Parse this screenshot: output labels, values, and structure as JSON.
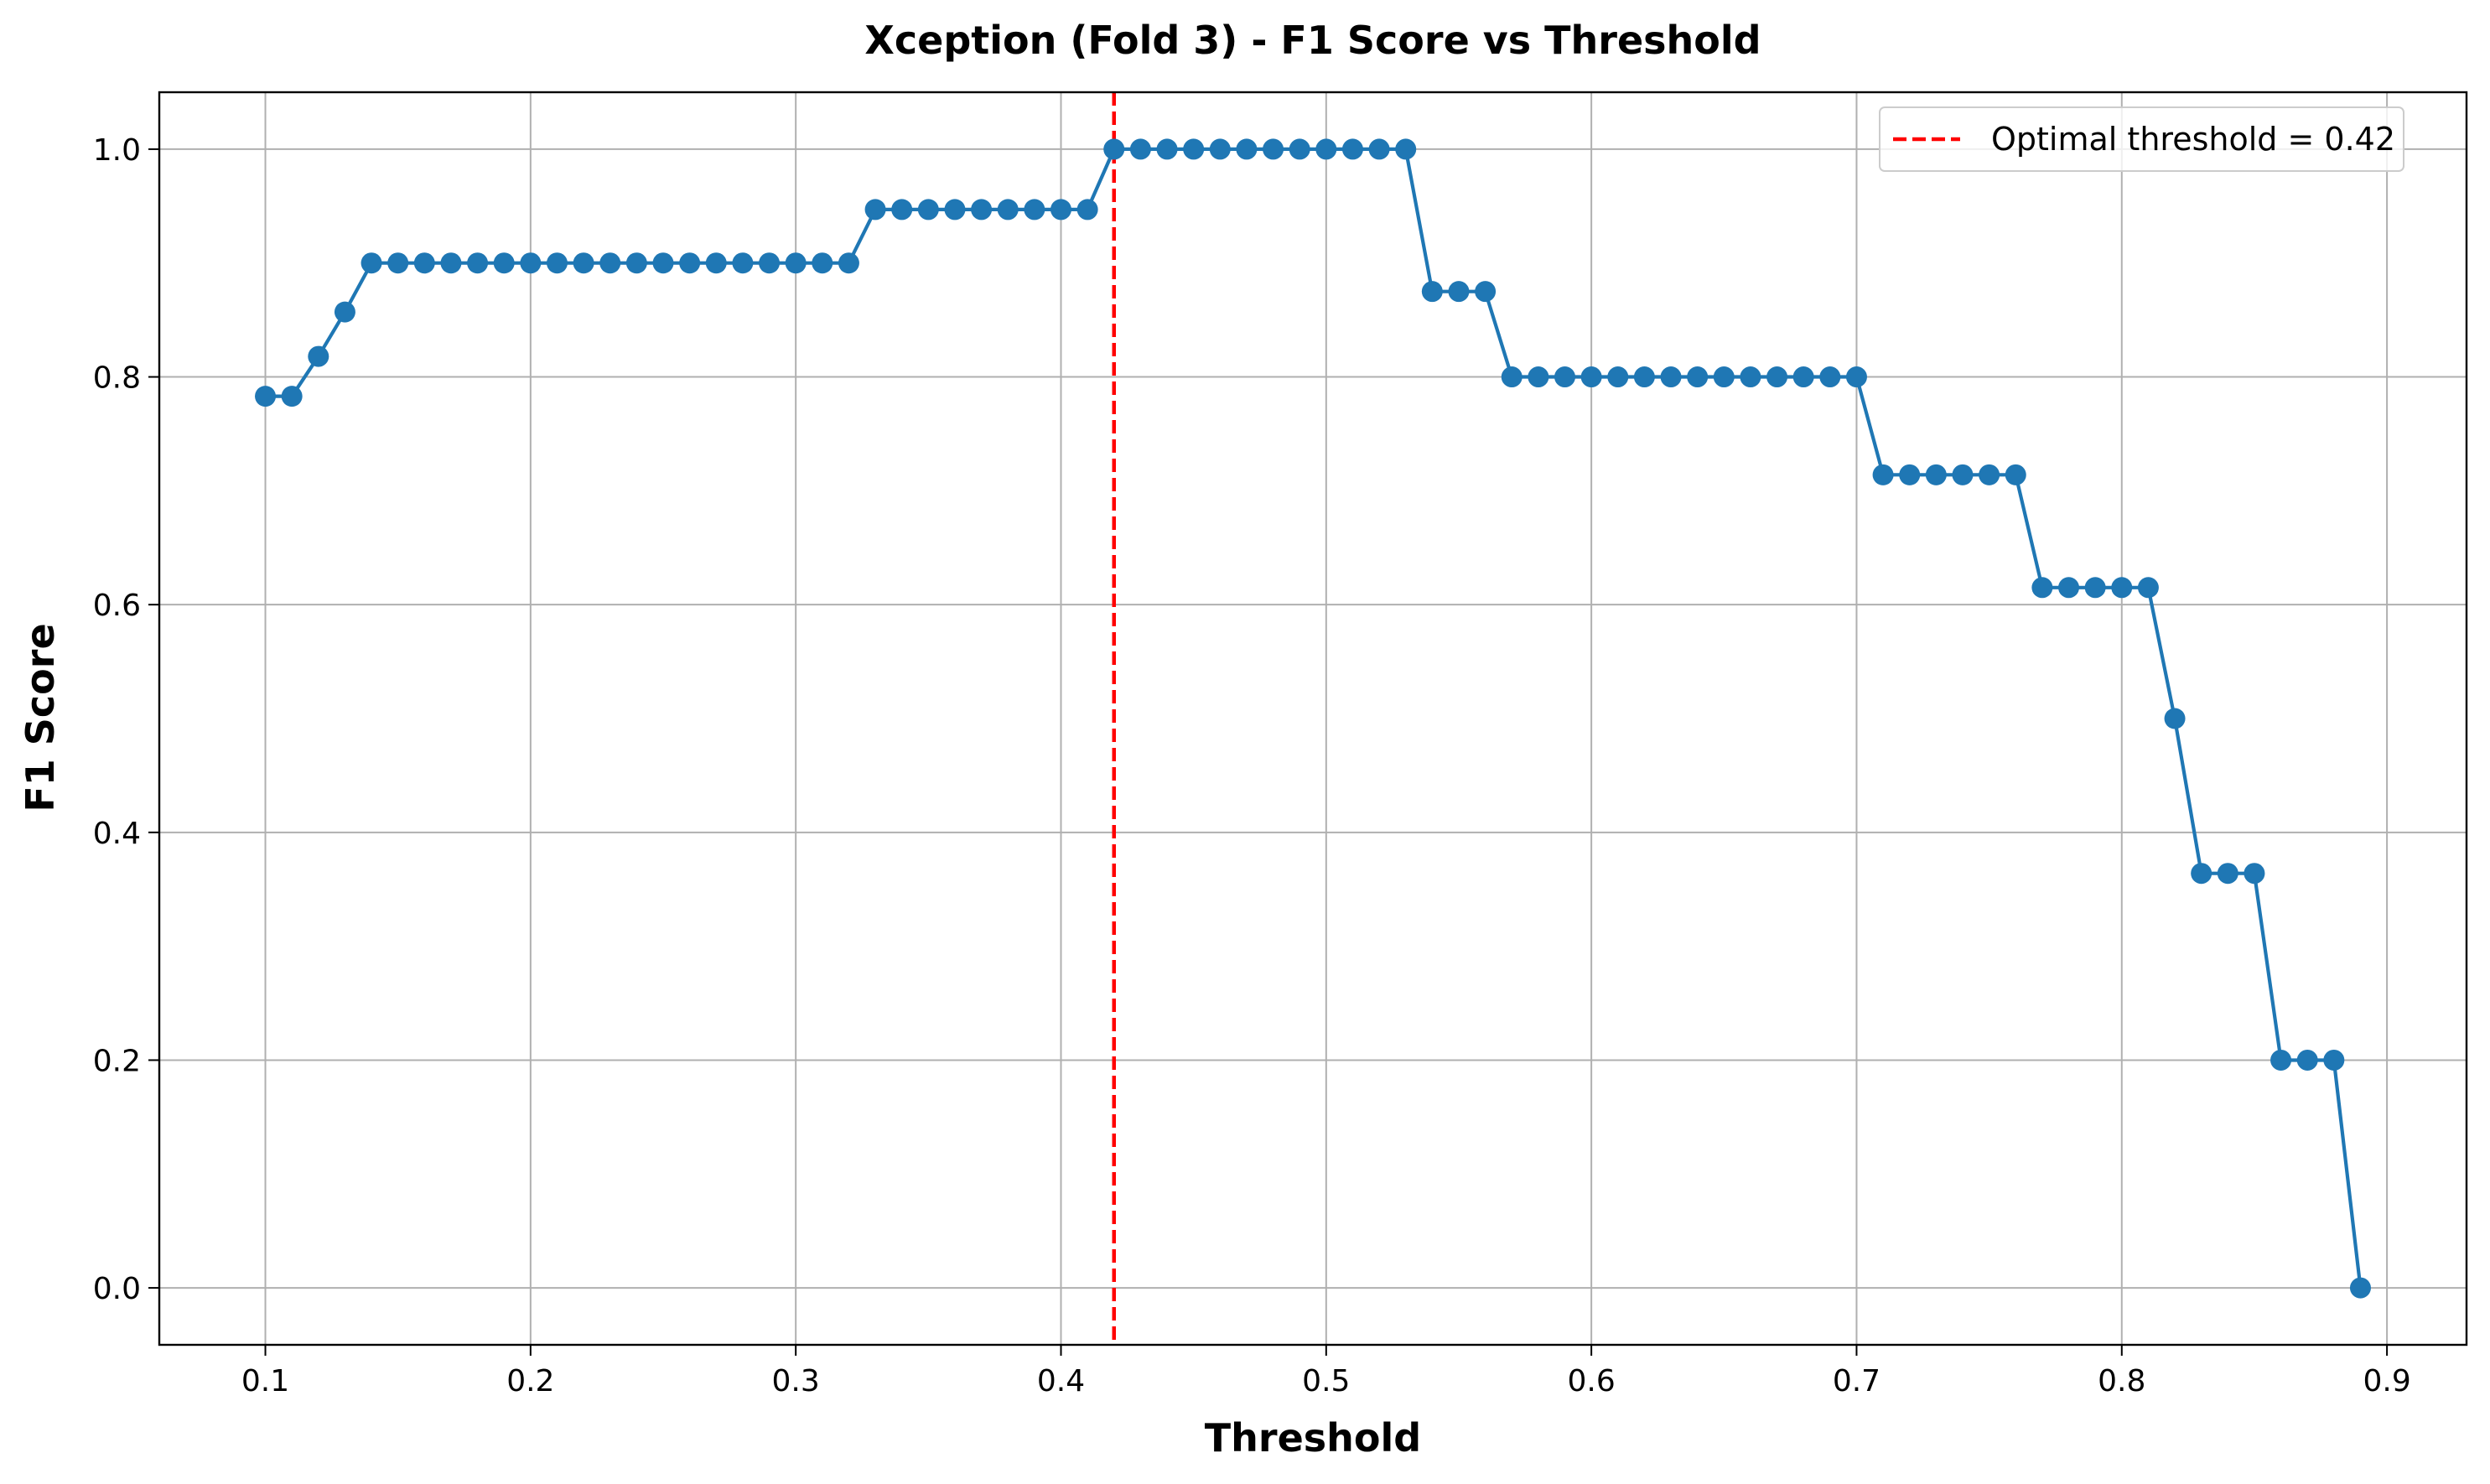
{
  "chart_data": {
    "type": "line",
    "title": "Xception (Fold 3) - F1 Score vs Threshold",
    "xlabel": "Threshold",
    "ylabel": "F1 Score",
    "xlim": [
      0.06,
      0.93
    ],
    "ylim": [
      -0.05,
      1.05
    ],
    "xticks": [
      0.1,
      0.2,
      0.3,
      0.4,
      0.5,
      0.6,
      0.7,
      0.8,
      0.9
    ],
    "xtick_labels": [
      "0.1",
      "0.2",
      "0.3",
      "0.4",
      "0.5",
      "0.6",
      "0.7",
      "0.8",
      "0.9"
    ],
    "yticks": [
      0.0,
      0.2,
      0.4,
      0.6,
      0.8,
      1.0
    ],
    "ytick_labels": [
      "0.0",
      "0.2",
      "0.4",
      "0.6",
      "0.8",
      "1.0"
    ],
    "grid": true,
    "legend_position": "top-right",
    "series": [
      {
        "color": "#1f77b4",
        "marker": "circle",
        "x": [
          0.1,
          0.11,
          0.12,
          0.13,
          0.14,
          0.15,
          0.16,
          0.17,
          0.18,
          0.19,
          0.2,
          0.21,
          0.22,
          0.23,
          0.24,
          0.25,
          0.26,
          0.27,
          0.28,
          0.29,
          0.3,
          0.31,
          0.32,
          0.33,
          0.34,
          0.35,
          0.36,
          0.37,
          0.38,
          0.39,
          0.4,
          0.41,
          0.42,
          0.43,
          0.44,
          0.45,
          0.46,
          0.47,
          0.48,
          0.49,
          0.5,
          0.51,
          0.52,
          0.53,
          0.54,
          0.55,
          0.56,
          0.57,
          0.58,
          0.59,
          0.6,
          0.61,
          0.62,
          0.63,
          0.64,
          0.65,
          0.66,
          0.67,
          0.68,
          0.69,
          0.7,
          0.71,
          0.72,
          0.73,
          0.74,
          0.75,
          0.76,
          0.77,
          0.78,
          0.79,
          0.8,
          0.81,
          0.82,
          0.83,
          0.84,
          0.85,
          0.86,
          0.87,
          0.88,
          0.89
        ],
        "y": [
          0.783,
          0.783,
          0.818,
          0.857,
          0.9,
          0.9,
          0.9,
          0.9,
          0.9,
          0.9,
          0.9,
          0.9,
          0.9,
          0.9,
          0.9,
          0.9,
          0.9,
          0.9,
          0.9,
          0.9,
          0.9,
          0.9,
          0.9,
          0.947,
          0.947,
          0.947,
          0.947,
          0.947,
          0.947,
          0.947,
          0.947,
          0.947,
          1.0,
          1.0,
          1.0,
          1.0,
          1.0,
          1.0,
          1.0,
          1.0,
          1.0,
          1.0,
          1.0,
          1.0,
          0.875,
          0.875,
          0.875,
          0.8,
          0.8,
          0.8,
          0.8,
          0.8,
          0.8,
          0.8,
          0.8,
          0.8,
          0.8,
          0.8,
          0.8,
          0.8,
          0.8,
          0.714,
          0.714,
          0.714,
          0.714,
          0.714,
          0.714,
          0.615,
          0.615,
          0.615,
          0.615,
          0.615,
          0.5,
          0.364,
          0.364,
          0.364,
          0.2,
          0.2,
          0.2,
          0.0
        ]
      }
    ],
    "reference_lines": [
      {
        "orientation": "vertical",
        "x": 0.42,
        "color": "#ff0000",
        "style": "dashed",
        "label": "Optimal threshold = 0.42"
      }
    ]
  }
}
